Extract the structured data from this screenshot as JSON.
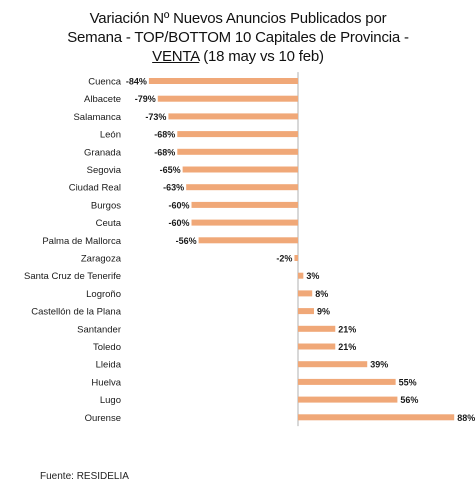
{
  "title": {
    "line1": "Variación Nº Nuevos Anuncios Publicados por",
    "line2": "Semana - TOP/BOTTOM 10 Capitales de Provincia -",
    "line3_venta": "VENTA",
    "line3_rest": " (18 may vs 10 feb)"
  },
  "source": "Fuente: RESIDELIA",
  "colors": {
    "bar": "#f0a878",
    "axis": "#b0b0b0",
    "text": "#1a1a1a"
  },
  "chart_data": {
    "type": "bar",
    "orientation": "horizontal",
    "title": "Variación Nº Nuevos Anuncios Publicados por Semana - TOP/BOTTOM 10 Capitales de Provincia - VENTA (18 may vs 10 feb)",
    "categories": [
      "Cuenca",
      "Albacete",
      "Salamanca",
      "León",
      "Granada",
      "Segovia",
      "Ciudad Real",
      "Burgos",
      "Ceuta",
      "Palma de Mallorca",
      "Zaragoza",
      "Santa Cruz de Tenerife",
      "Logroño",
      "Castellón de la Plana",
      "Santander",
      "Toledo",
      "Lleida",
      "Huelva",
      "Lugo",
      "Ourense"
    ],
    "values": [
      -84,
      -79,
      -73,
      -68,
      -68,
      -65,
      -63,
      -60,
      -60,
      -56,
      -2,
      3,
      8,
      9,
      21,
      21,
      39,
      55,
      56,
      88
    ],
    "data_labels": [
      "-84%",
      "-79%",
      "-73%",
      "-68%",
      "-68%",
      "-65%",
      "-63%",
      "-60%",
      "-60%",
      "-56%",
      "-2%",
      "3%",
      "8%",
      "9%",
      "21%",
      "21%",
      "39%",
      "55%",
      "56%",
      "88%"
    ],
    "unit": "%",
    "xlim": [
      -100,
      88
    ],
    "grid": false,
    "legend": "none"
  }
}
